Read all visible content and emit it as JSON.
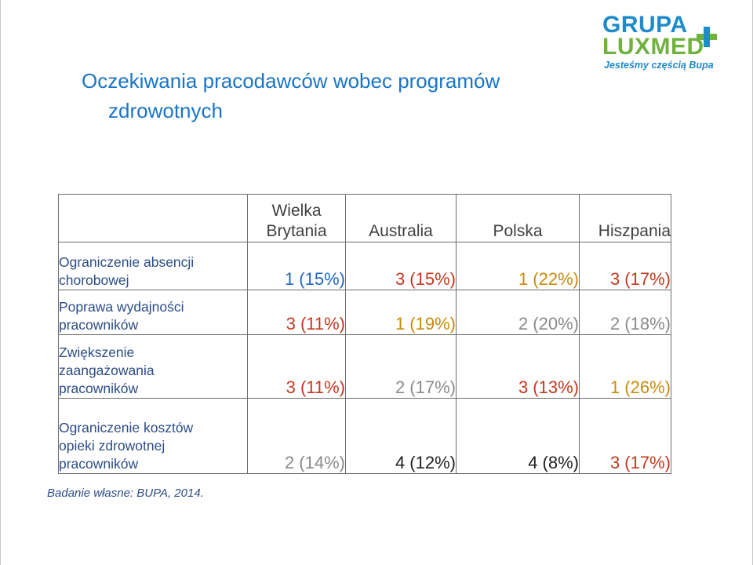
{
  "logo": {
    "line1": "GRUPA",
    "line2": "LUXMED",
    "tagline": "Jesteśmy częścią Bupa"
  },
  "title": {
    "line1": "Oczekiwania pracodawców wobec programów",
    "line2": "zdrowotnych"
  },
  "table": {
    "headers": [
      {
        "line1": "Wielka",
        "line2": "Brytania"
      },
      {
        "line1": "",
        "line2": "Australia"
      },
      {
        "line1": "",
        "line2": "Polska"
      },
      {
        "line1": "",
        "line2": "Hiszpania"
      }
    ],
    "rows": [
      {
        "label": [
          "Ograniczenie absencji",
          "chorobowej"
        ],
        "values": [
          "1 (15%)",
          "3 (15%)",
          "1  (22%)",
          "3 (17%)"
        ],
        "colors": [
          "#1f66c0",
          "#c4381f",
          "#c98a0c",
          "#c4381f"
        ]
      },
      {
        "label": [
          "Poprawa wydajności",
          "pracowników"
        ],
        "values": [
          "3 (11%)",
          "1 (19%)",
          "2 (20%)",
          "2 (18%)"
        ],
        "colors": [
          "#c4381f",
          "#c98a0c",
          "#8a8a8a",
          "#8a8a8a"
        ]
      },
      {
        "label": [
          "Zwiększenie",
          "zaangażowania",
          "pracowników"
        ],
        "values": [
          "3 (11%)",
          "2 (17%)",
          "3 (13%)",
          "1 (26%)"
        ],
        "colors": [
          "#c4381f",
          "#8a8a8a",
          "#c4381f",
          "#c98a0c"
        ]
      },
      {
        "label": [
          "Ograniczenie kosztów",
          "opieki zdrowotnej",
          "pracowników"
        ],
        "values": [
          "2 (14%)",
          "4 (12%)",
          "4 (8%)",
          "3 (17%)"
        ],
        "colors": [
          "#8a8a8a",
          "#222222",
          "#222222",
          "#c4381f"
        ]
      }
    ]
  },
  "source": "Badanie własne: BUPA, 2014."
}
